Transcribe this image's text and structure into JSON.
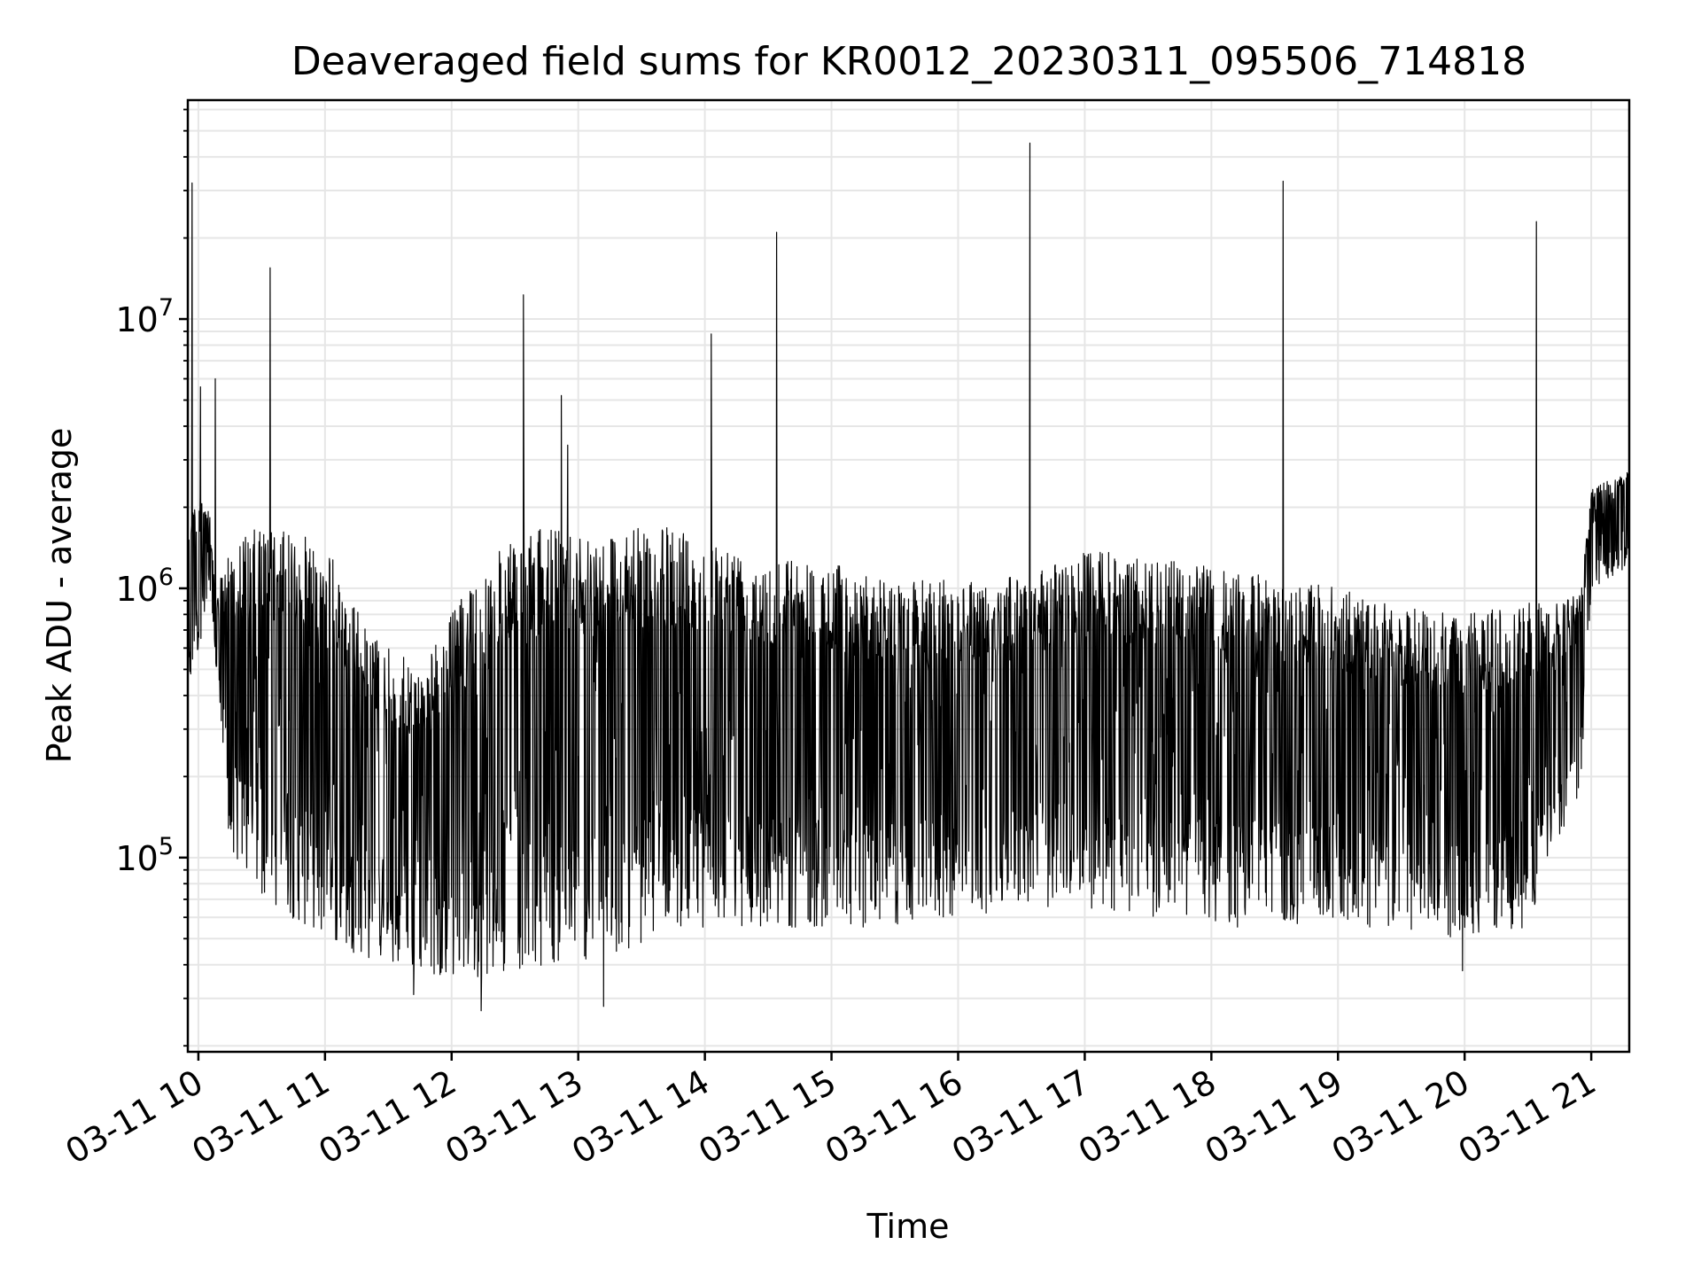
{
  "chart_data": {
    "type": "line",
    "title": "Deaveraged field sums for KR0012_20230311_095506_714818",
    "xlabel": "Time",
    "ylabel": "Peak ADU - average",
    "yscale": "log",
    "ylim": [
      19000,
      65000000
    ],
    "xlim": [
      "2023-03-11 09:55",
      "2023-03-11 21:18"
    ],
    "grid": true,
    "minor_grid": true,
    "line_color": "#000000",
    "grid_color": "#e6e6e6",
    "x_ticks": [
      {
        "t": "2023-03-11 10:00",
        "label": "03-11 10"
      },
      {
        "t": "2023-03-11 11:00",
        "label": "03-11 11"
      },
      {
        "t": "2023-03-11 12:00",
        "label": "03-11 12"
      },
      {
        "t": "2023-03-11 13:00",
        "label": "03-11 13"
      },
      {
        "t": "2023-03-11 14:00",
        "label": "03-11 14"
      },
      {
        "t": "2023-03-11 15:00",
        "label": "03-11 15"
      },
      {
        "t": "2023-03-11 16:00",
        "label": "03-11 16"
      },
      {
        "t": "2023-03-11 17:00",
        "label": "03-11 17"
      },
      {
        "t": "2023-03-11 18:00",
        "label": "03-11 18"
      },
      {
        "t": "2023-03-11 19:00",
        "label": "03-11 19"
      },
      {
        "t": "2023-03-11 20:00",
        "label": "03-11 20"
      },
      {
        "t": "2023-03-11 21:00",
        "label": "03-11 21"
      }
    ],
    "y_ticks": [
      {
        "value": 100000,
        "base": "10",
        "exp": "5"
      },
      {
        "value": 1000000,
        "base": "10",
        "exp": "6"
      },
      {
        "value": 10000000,
        "base": "10",
        "exp": "7"
      }
    ],
    "envelope": [
      {
        "t": "2023-03-11 09:55",
        "low": 380000,
        "high": 2200000
      },
      {
        "t": "2023-03-11 10:05",
        "low": 900000,
        "high": 2200000
      },
      {
        "t": "2023-03-11 10:08",
        "low": 550000,
        "high": 900000
      },
      {
        "t": "2023-03-11 10:15",
        "low": 100000,
        "high": 1500000
      },
      {
        "t": "2023-03-11 10:30",
        "low": 70000,
        "high": 1700000
      },
      {
        "t": "2023-03-11 11:00",
        "low": 50000,
        "high": 1500000
      },
      {
        "t": "2023-03-11 11:20",
        "low": 42000,
        "high": 700000
      },
      {
        "t": "2023-03-11 11:45",
        "low": 37000,
        "high": 500000
      },
      {
        "t": "2023-03-11 12:15",
        "low": 36000,
        "high": 1300000
      },
      {
        "t": "2023-03-11 12:45",
        "low": 40000,
        "high": 1700000
      },
      {
        "t": "2023-03-11 13:15",
        "low": 42000,
        "high": 1650000
      },
      {
        "t": "2023-03-11 13:45",
        "low": 55000,
        "high": 1700000
      },
      {
        "t": "2023-03-11 14:20",
        "low": 55000,
        "high": 1400000
      },
      {
        "t": "2023-03-11 15:00",
        "low": 55000,
        "high": 1250000
      },
      {
        "t": "2023-03-11 15:30",
        "low": 55000,
        "high": 1050000
      },
      {
        "t": "2023-03-11 16:00",
        "low": 60000,
        "high": 1100000
      },
      {
        "t": "2023-03-11 16:30",
        "low": 65000,
        "high": 1100000
      },
      {
        "t": "2023-03-11 17:00",
        "low": 65000,
        "high": 1400000
      },
      {
        "t": "2023-03-11 17:30",
        "low": 60000,
        "high": 1300000
      },
      {
        "t": "2023-03-11 18:00",
        "low": 55000,
        "high": 1200000
      },
      {
        "t": "2023-03-11 18:30",
        "low": 55000,
        "high": 1100000
      },
      {
        "t": "2023-03-11 19:00",
        "low": 55000,
        "high": 1000000
      },
      {
        "t": "2023-03-11 19:30",
        "low": 52000,
        "high": 850000
      },
      {
        "t": "2023-03-11 20:00",
        "low": 50000,
        "high": 800000
      },
      {
        "t": "2023-03-11 20:30",
        "low": 55000,
        "high": 900000
      },
      {
        "t": "2023-03-11 20:55",
        "low": 180000,
        "high": 950000
      },
      {
        "t": "2023-03-11 21:00",
        "low": 1000000,
        "high": 2400000
      },
      {
        "t": "2023-03-11 21:18",
        "low": 1200000,
        "high": 2800000
      }
    ],
    "spikes": [
      {
        "t": "2023-03-11 09:57",
        "value": 32000000
      },
      {
        "t": "2023-03-11 10:01",
        "value": 5600000
      },
      {
        "t": "2023-03-11 10:08",
        "value": 6000000
      },
      {
        "t": "2023-03-11 10:34",
        "value": 15500000
      },
      {
        "t": "2023-03-11 12:34",
        "value": 12300000
      },
      {
        "t": "2023-03-11 12:52",
        "value": 5200000
      },
      {
        "t": "2023-03-11 12:55",
        "value": 3400000
      },
      {
        "t": "2023-03-11 14:03",
        "value": 8800000
      },
      {
        "t": "2023-03-11 14:34",
        "value": 21000000
      },
      {
        "t": "2023-03-11 16:34",
        "value": 45000000
      },
      {
        "t": "2023-03-11 18:34",
        "value": 32500000
      },
      {
        "t": "2023-03-11 20:34",
        "value": 23000000
      }
    ],
    "dips": [
      {
        "t": "2023-03-11 12:14",
        "value": 27000
      },
      {
        "t": "2023-03-11 13:12",
        "value": 28000
      },
      {
        "t": "2023-03-11 11:42",
        "value": 31000
      },
      {
        "t": "2023-03-11 19:59",
        "value": 38000
      }
    ]
  }
}
